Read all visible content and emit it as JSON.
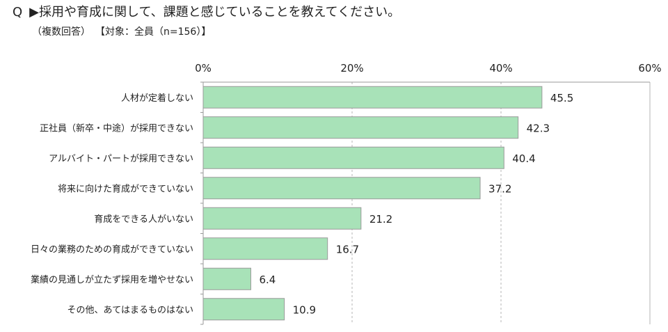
{
  "header": {
    "q_mark": "Q",
    "question": "▶採用や育成に関して、課題と感じていることを教えてください。",
    "note_multi": "（複数回答）",
    "note_target": "【対象：全員（n=156）】"
  },
  "colors": {
    "bar_fill": "#a8e2b8",
    "bar_stroke": "#9a9a9a",
    "grid": "#b5b5b5",
    "axis": "#999999"
  },
  "chart_data": {
    "type": "bar",
    "orientation": "horizontal",
    "categories": [
      "人材が定着しない",
      "正社員（新卒・中途）が採用できない",
      "アルバイト・パートが採用できない",
      "将来に向けた育成ができていない",
      "育成をできる人がいない",
      "日々の業務のための育成ができていない",
      "業績の見通しが立たず採用を増やせない",
      "その他、あてはまるものはない"
    ],
    "values": [
      45.5,
      42.3,
      40.4,
      37.2,
      21.2,
      16.7,
      6.4,
      10.9
    ],
    "value_labels": [
      "45.5",
      "42.3",
      "40.4",
      "37.2",
      "21.2",
      "16.7",
      "6.4",
      "10.9"
    ],
    "xlim": [
      0,
      60
    ],
    "ticks": [
      0,
      20,
      40,
      60
    ],
    "tick_labels": [
      "0%",
      "20%",
      "40%",
      "60%"
    ],
    "axis_position": "top",
    "grid": true,
    "grid_style": "dashed"
  }
}
